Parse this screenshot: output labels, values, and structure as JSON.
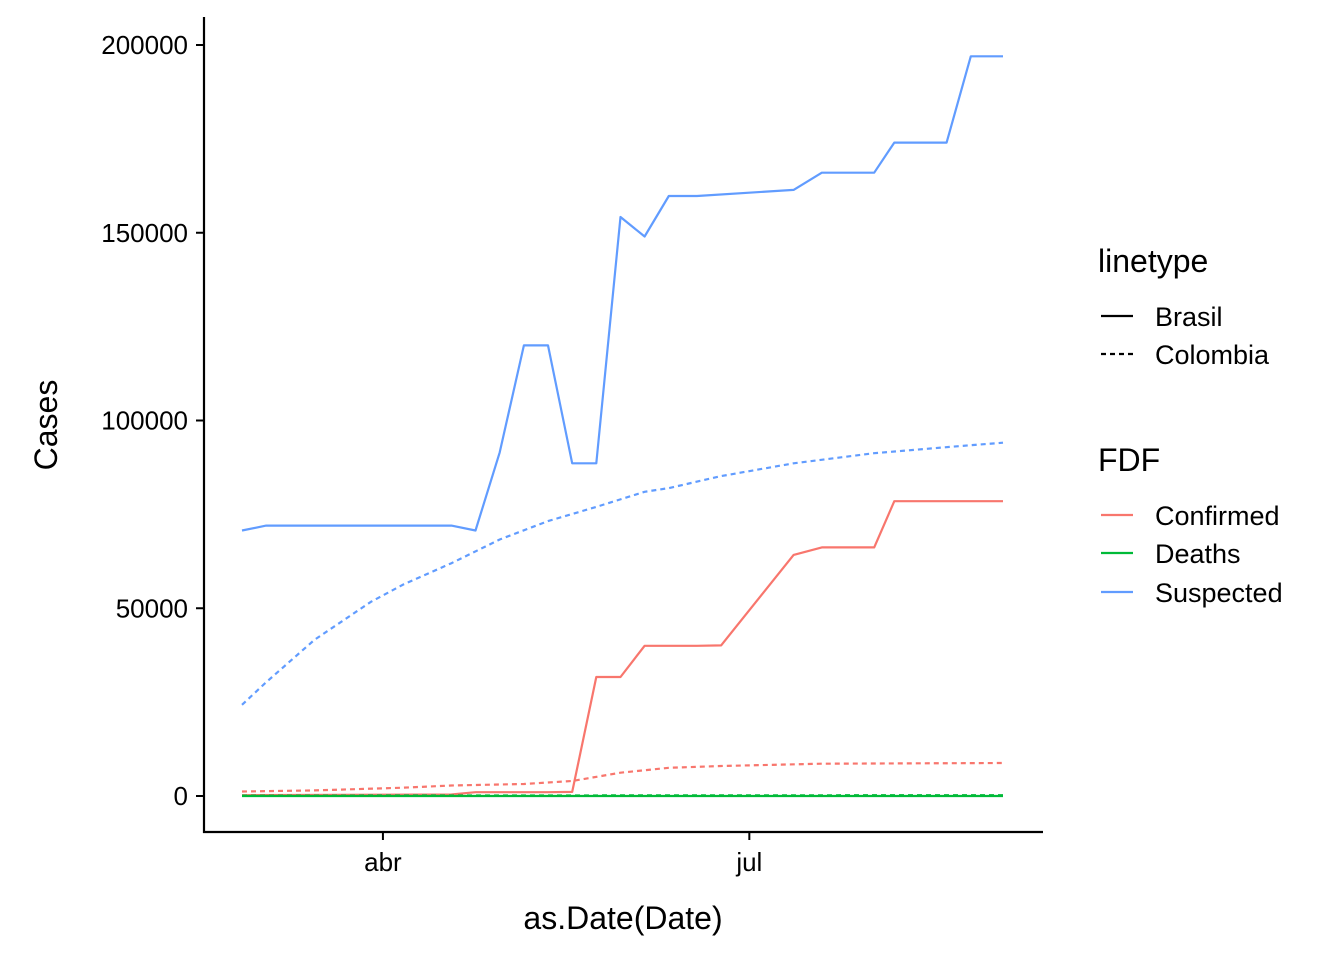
{
  "chart_data": {
    "type": "line",
    "title": "",
    "xlabel": "as.Date(Date)",
    "ylabel": "Cases",
    "x_ticks": [
      "abr",
      "jul"
    ],
    "y_ticks": [
      "0",
      "50000",
      "100000",
      "150000",
      "200000"
    ],
    "ylim": [
      0,
      200000
    ],
    "xlim": [
      "2020-02-26",
      "2020-09-02"
    ],
    "grid": false,
    "legend_position": "right",
    "legends": {
      "linetype": {
        "title": "linetype",
        "entries": [
          {
            "label": "Brasil",
            "dash": "solid"
          },
          {
            "label": "Colombia",
            "dash": "dashed"
          }
        ]
      },
      "color": {
        "title": "FDF",
        "entries": [
          {
            "label": "Confirmed",
            "color": "#F8766D"
          },
          {
            "label": "Deaths",
            "color": "#00BA38"
          },
          {
            "label": "Suspected",
            "color": "#619CFF"
          }
        ]
      }
    },
    "series": [
      {
        "name": "Suspected",
        "linetype": "Brasil",
        "color": "#619CFF",
        "dash": "solid",
        "points": [
          [
            "2020-02-26",
            70700
          ],
          [
            "2020-03-03",
            72000
          ],
          [
            "2020-03-15",
            72000
          ],
          [
            "2020-03-29",
            72000
          ],
          [
            "2020-04-09",
            72000
          ],
          [
            "2020-04-18",
            72000
          ],
          [
            "2020-04-24",
            70700
          ],
          [
            "2020-04-30",
            91500
          ],
          [
            "2020-05-06",
            120000
          ],
          [
            "2020-05-12",
            120000
          ],
          [
            "2020-05-18",
            88600
          ],
          [
            "2020-05-24",
            88600
          ],
          [
            "2020-05-30",
            154200
          ],
          [
            "2020-06-05",
            149000
          ],
          [
            "2020-06-11",
            159800
          ],
          [
            "2020-06-18",
            159800
          ],
          [
            "2020-07-12",
            161400
          ],
          [
            "2020-07-19",
            166000
          ],
          [
            "2020-08-01",
            166000
          ],
          [
            "2020-08-06",
            174000
          ],
          [
            "2020-08-19",
            174000
          ],
          [
            "2020-08-25",
            197000
          ],
          [
            "2020-09-02",
            197000
          ]
        ]
      },
      {
        "name": "Confirmed",
        "linetype": "Brasil",
        "color": "#F8766D",
        "dash": "solid",
        "points": [
          [
            "2020-02-26",
            200
          ],
          [
            "2020-04-18",
            400
          ],
          [
            "2020-04-24",
            1000
          ],
          [
            "2020-05-12",
            1000
          ],
          [
            "2020-05-18",
            1100
          ],
          [
            "2020-05-24",
            31700
          ],
          [
            "2020-05-30",
            31700
          ],
          [
            "2020-06-05",
            40000
          ],
          [
            "2020-06-18",
            40000
          ],
          [
            "2020-06-24",
            40100
          ],
          [
            "2020-07-12",
            64200
          ],
          [
            "2020-07-19",
            66200
          ],
          [
            "2020-08-01",
            66200
          ],
          [
            "2020-08-06",
            78500
          ],
          [
            "2020-09-02",
            78500
          ]
        ]
      },
      {
        "name": "Deaths",
        "linetype": "Brasil",
        "color": "#00BA38",
        "dash": "solid",
        "points": [
          [
            "2020-02-26",
            0
          ],
          [
            "2020-09-02",
            0
          ]
        ]
      },
      {
        "name": "Suspected",
        "linetype": "Colombia",
        "color": "#619CFF",
        "dash": "dashed",
        "points": [
          [
            "2020-02-26",
            24300
          ],
          [
            "2020-03-03",
            30300
          ],
          [
            "2020-03-15",
            41600
          ],
          [
            "2020-03-29",
            51700
          ],
          [
            "2020-04-06",
            56300
          ],
          [
            "2020-04-18",
            62000
          ],
          [
            "2020-04-30",
            68300
          ],
          [
            "2020-05-12",
            73200
          ],
          [
            "2020-05-24",
            77000
          ],
          [
            "2020-06-05",
            81000
          ],
          [
            "2020-06-11",
            82000
          ],
          [
            "2020-06-24",
            85200
          ],
          [
            "2020-07-12",
            88600
          ],
          [
            "2020-08-01",
            91300
          ],
          [
            "2020-08-20",
            93000
          ],
          [
            "2020-09-02",
            94100
          ]
        ]
      },
      {
        "name": "Confirmed",
        "linetype": "Colombia",
        "color": "#F8766D",
        "dash": "dashed",
        "points": [
          [
            "2020-02-26",
            1200
          ],
          [
            "2020-03-15",
            1500
          ],
          [
            "2020-04-06",
            2200
          ],
          [
            "2020-04-18",
            2800
          ],
          [
            "2020-05-06",
            3200
          ],
          [
            "2020-05-18",
            4000
          ],
          [
            "2020-05-30",
            6200
          ],
          [
            "2020-06-11",
            7500
          ],
          [
            "2020-06-24",
            8000
          ],
          [
            "2020-07-19",
            8600
          ],
          [
            "2020-09-02",
            8800
          ]
        ]
      },
      {
        "name": "Deaths",
        "linetype": "Colombia",
        "color": "#00BA38",
        "dash": "dashed",
        "points": [
          [
            "2020-02-26",
            100
          ],
          [
            "2020-09-02",
            200
          ]
        ]
      }
    ]
  }
}
